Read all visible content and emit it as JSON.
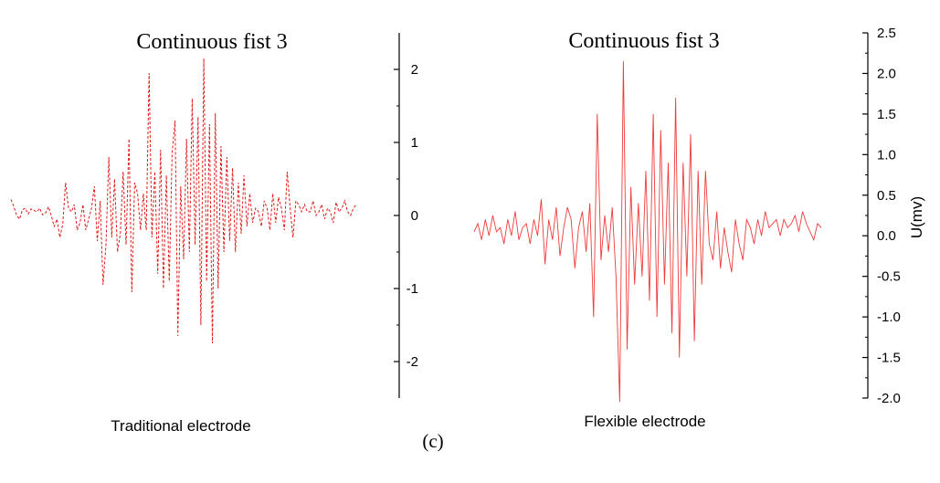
{
  "panel_label": "(c)",
  "chart_data": [
    {
      "type": "line",
      "title": "Continuous fist 3",
      "caption": "Traditional electrode",
      "ylabel": "",
      "ylim": [
        -2.5,
        2.5
      ],
      "yticks": [
        "2",
        "1",
        "0",
        "-1",
        "-2"
      ],
      "ytick_values": [
        2,
        1,
        0,
        -1,
        -2
      ],
      "line_color": "#e01b1b",
      "line_style": "dashed",
      "series": [
        {
          "values": [
            0.22,
            0.12,
            0.0,
            -0.05,
            0.08,
            0.1,
            0.02,
            0.09,
            0.07,
            0.05,
            0.1,
            0.01,
            0.03,
            0.12,
            0.0,
            -0.15,
            -0.05,
            -0.3,
            -0.12,
            0.45,
            0.1,
            0.05,
            0.15,
            -0.2,
            -0.1,
            0.15,
            -0.2,
            -0.05,
            0.1,
            0.4,
            -0.35,
            0.2,
            -0.95,
            -0.4,
            0.8,
            -0.3,
            0.5,
            -0.5,
            -0.25,
            0.6,
            -0.4,
            1.05,
            -1.05,
            0.45,
            0.3,
            -0.2,
            0.3,
            -0.2,
            1.95,
            -0.3,
            0.6,
            -0.8,
            0.9,
            -1.0,
            0.55,
            -0.9,
            0.85,
            1.3,
            -1.65,
            0.4,
            -0.6,
            1.05,
            -0.5,
            1.6,
            -0.4,
            1.35,
            -1.5,
            2.15,
            -0.9,
            1.25,
            -1.75,
            1.4,
            -1.0,
            0.95,
            -0.5,
            0.8,
            -0.35,
            0.65,
            -0.5,
            0.45,
            -0.25,
            0.55,
            -0.15,
            0.3,
            -0.1,
            0.1,
            0.05,
            -0.15,
            0.2,
            0.1,
            -0.2,
            0.3,
            -0.1,
            0.25,
            0.1,
            -0.2,
            0.6,
            0.1,
            -0.3,
            0.2,
            0.15,
            0.05,
            0.15,
            0.05,
            0.05,
            0.2,
            0.0,
            0.05,
            0.15,
            -0.05,
            0.1,
            0.05,
            -0.1,
            0.18,
            0.05,
            0.1,
            0.2,
            0.05,
            0.0,
            0.1,
            0.15
          ]
        }
      ]
    },
    {
      "type": "line",
      "title": "Continuous fist 3",
      "caption": "Flexible electrode",
      "ylabel": "U(mv)",
      "ylim": [
        -2.0,
        2.5
      ],
      "yticks": [
        "2.5",
        "2.0",
        "1.5",
        "1.0",
        "0.5",
        "0.0",
        "-0.5",
        "-1.0",
        "-1.5",
        "-2.0"
      ],
      "ytick_values": [
        2.5,
        2.0,
        1.5,
        1.0,
        0.5,
        0.0,
        -0.5,
        -1.0,
        -1.5,
        -2.0
      ],
      "line_color": "#f03a3a",
      "line_style": "solid",
      "series": [
        {
          "values": [
            0.05,
            0.15,
            -0.05,
            0.2,
            0.0,
            0.25,
            0.05,
            0.1,
            -0.1,
            0.2,
            0.0,
            0.3,
            -0.05,
            0.1,
            0.15,
            -0.1,
            0.2,
            0.0,
            0.45,
            -0.35,
            0.2,
            -0.05,
            0.35,
            -0.25,
            0.1,
            0.35,
            0.2,
            -0.4,
            0.1,
            0.3,
            -0.2,
            0.4,
            -1.0,
            1.5,
            -0.3,
            0.25,
            -0.2,
            0.35,
            -0.5,
            -2.05,
            2.15,
            -1.4,
            0.6,
            -0.6,
            0.4,
            -0.5,
            0.8,
            -0.8,
            1.5,
            -1.0,
            1.3,
            -0.6,
            0.9,
            -1.2,
            1.7,
            -1.5,
            0.9,
            -0.5,
            1.25,
            -1.3,
            0.8,
            -0.6,
            0.8,
            -0.1,
            -0.3,
            0.3,
            -0.4,
            0.1,
            -0.2,
            -0.45,
            0.2,
            -0.1,
            -0.3,
            0.2,
            0.1,
            -0.1,
            0.2,
            0.0,
            0.3,
            0.1,
            0.15,
            0.2,
            0.0,
            0.2,
            0.1,
            0.15,
            0.25,
            0.05,
            0.3,
            0.15,
            0.05,
            -0.05,
            0.15,
            0.1
          ]
        }
      ]
    }
  ]
}
